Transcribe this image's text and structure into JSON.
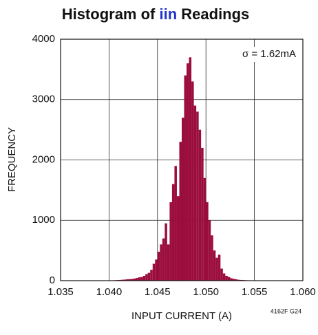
{
  "chart_data": {
    "type": "histogram",
    "title": "Histogram of iin Readings",
    "title_highlight": "iin",
    "title_highlight_color": "#2233cc",
    "annotation": "σ = 1.62mA",
    "footnote": "4162F G24",
    "xlabel": "INPUT CURRENT (A)",
    "ylabel": "FREQUENCY",
    "color": "#9b0d3d",
    "grid": true,
    "xlim": [
      1.035,
      1.06
    ],
    "ylim": [
      0,
      4000
    ],
    "xticks": [
      1.035,
      {
        "value": 1.04,
        "label": "1.040"
      },
      1.045,
      {
        "value": 1.05,
        "label": "1.050"
      },
      1.055,
      {
        "value": 1.06,
        "label": "1.060"
      }
    ],
    "yticks": [
      0,
      1000,
      2000,
      3000,
      4000
    ],
    "bins": [
      1.0395,
      1.03975,
      1.04,
      1.04025,
      1.0405,
      1.04075,
      1.041,
      1.04125,
      1.0415,
      1.04175,
      1.042,
      1.04225,
      1.0425,
      1.04275,
      1.043,
      1.04325,
      1.0435,
      1.04375,
      1.044,
      1.04425,
      1.0445,
      1.04475,
      1.045,
      1.04525,
      1.0455,
      1.04575,
      1.046,
      1.04625,
      1.0465,
      1.04675,
      1.047,
      1.04725,
      1.0475,
      1.04775,
      1.048,
      1.04825,
      1.0485,
      1.04875,
      1.049,
      1.04925,
      1.0495,
      1.04975,
      1.05,
      1.05025,
      1.0505,
      1.05075,
      1.051,
      1.05125,
      1.0515,
      1.05175,
      1.052,
      1.05225,
      1.0525,
      1.05275,
      1.053,
      1.05325,
      1.0535,
      1.05375,
      1.054,
      1.05425,
      1.0545,
      1.05475,
      1.055,
      1.05525,
      1.0555,
      1.05575,
      1.056
    ],
    "values": [
      2,
      3,
      5,
      6,
      8,
      10,
      12,
      15,
      18,
      22,
      25,
      28,
      35,
      45,
      55,
      60,
      80,
      110,
      130,
      180,
      280,
      350,
      480,
      600,
      700,
      950,
      600,
      1300,
      1600,
      1900,
      1400,
      2300,
      2700,
      3400,
      3600,
      3700,
      3300,
      2900,
      2800,
      2500,
      2200,
      1700,
      1300,
      1000,
      750,
      500,
      380,
      430,
      200,
      120,
      80,
      60,
      40,
      30,
      22,
      15,
      12,
      10,
      8,
      6,
      5,
      4,
      3,
      3,
      2,
      2
    ]
  }
}
